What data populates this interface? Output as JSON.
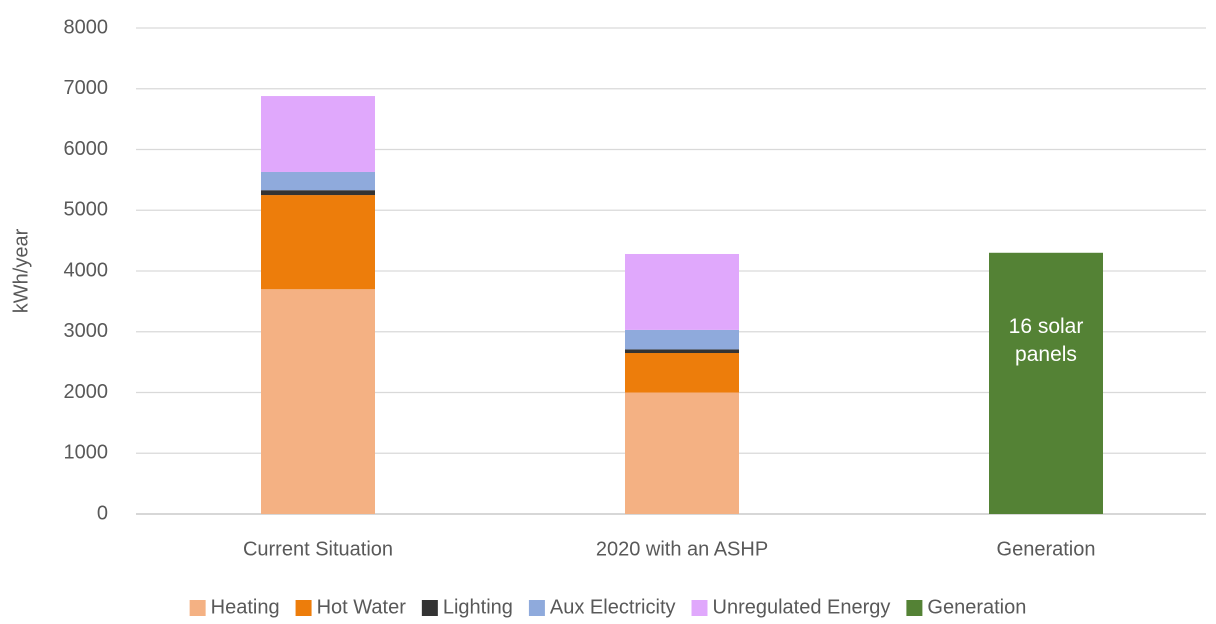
{
  "chart_data": {
    "type": "stacked_bar",
    "ylabel": "kWh/year",
    "categories": [
      "Current Situation",
      "2020 with an ASHP",
      "Generation"
    ],
    "series": [
      {
        "name": "Heating",
        "color": "#f4b183",
        "values": [
          3700,
          2000,
          null
        ]
      },
      {
        "name": "Hot Water",
        "color": "#ed7d0b",
        "values": [
          1550,
          650,
          null
        ]
      },
      {
        "name": "Lighting",
        "color": "#333333",
        "values": [
          80,
          60,
          null
        ]
      },
      {
        "name": "Aux Electricity",
        "color": "#8faadc",
        "values": [
          300,
          320,
          null
        ]
      },
      {
        "name": "Unregulated Energy",
        "color": "#e0a8fc",
        "values": [
          1250,
          1250,
          null
        ]
      },
      {
        "name": "Generation",
        "color": "#548235",
        "values": [
          null,
          null,
          4300
        ]
      }
    ],
    "annotation": "16 solar panels",
    "ylim": [
      0,
      8000
    ],
    "yticks": [
      0,
      1000,
      2000,
      3000,
      4000,
      5000,
      6000,
      7000,
      8000
    ],
    "grid": true,
    "legend": "bottom"
  }
}
